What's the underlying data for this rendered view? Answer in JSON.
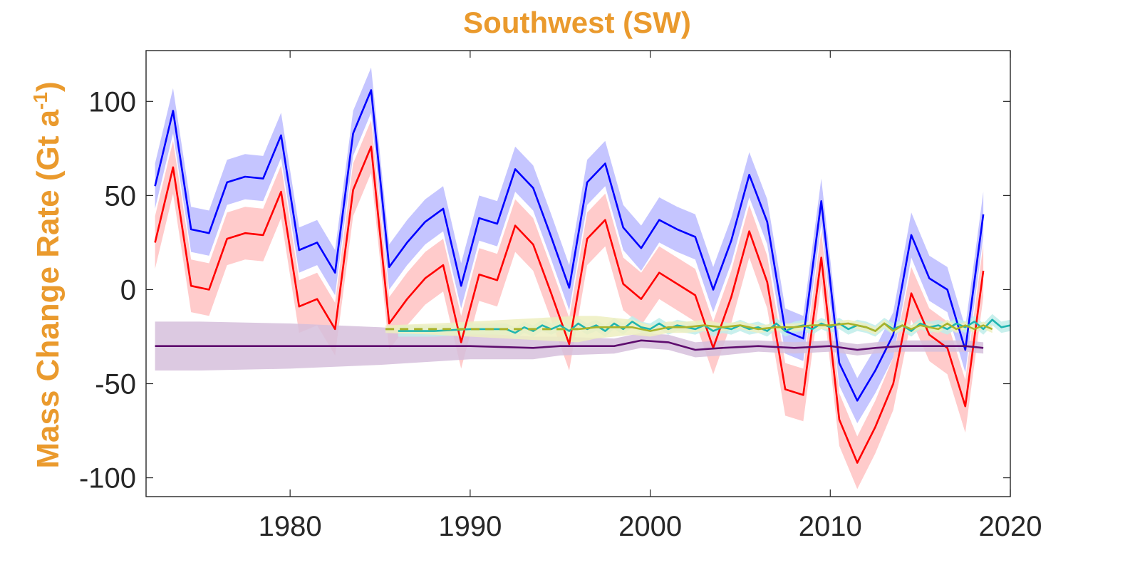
{
  "chart_data": {
    "type": "line",
    "title": "Southwest (SW)",
    "ylabel": "Mass Change Rate (Gt a",
    "ylabel_superscript": "-1",
    "ylabel_suffix": ")",
    "xlim": [
      1972,
      2020
    ],
    "ylim": [
      -110,
      127
    ],
    "xticks": [
      "1980",
      "1990",
      "2000",
      "2010",
      "2020"
    ],
    "yticks": [
      "100",
      "50",
      "0",
      "-50",
      "-100"
    ],
    "grid": false,
    "legend": "none",
    "series": [
      {
        "color": "#0000FF",
        "band_color": "#BBBBFF",
        "x": [
          1972.5,
          1973.5,
          1974.5,
          1975.5,
          1976.5,
          1977.5,
          1978.5,
          1979.5,
          1980.5,
          1981.5,
          1982.5,
          1983.5,
          1984.5,
          1985.5,
          1986.5,
          1987.5,
          1988.5,
          1989.5,
          1990.5,
          1991.5,
          1992.5,
          1993.5,
          1994.5,
          1995.5,
          1996.5,
          1997.5,
          1998.5,
          1999.5,
          2000.5,
          2001.5,
          2002.5,
          2003.5,
          2004.5,
          2005.5,
          2006.5,
          2007.5,
          2008.5,
          2009.5,
          2010.5,
          2011.5,
          2012.5,
          2013.5,
          2014.5,
          2015.5,
          2016.5,
          2017.5,
          2018.5
        ],
        "y": [
          55,
          95,
          32,
          30,
          57,
          60,
          59,
          82,
          21,
          25,
          9,
          83,
          106,
          12,
          25,
          36,
          43,
          2,
          38,
          35,
          64,
          54,
          28,
          1,
          57,
          67,
          33,
          22,
          37,
          32,
          28,
          0,
          26,
          61,
          36,
          -22,
          -26,
          47,
          -39,
          -59,
          -43,
          -24,
          29,
          6,
          0,
          -32,
          40
        ],
        "err": 12
      },
      {
        "color": "#FF0000",
        "band_color": "#FFC2C2",
        "x": [
          1972.5,
          1973.5,
          1974.5,
          1975.5,
          1976.5,
          1977.5,
          1978.5,
          1979.5,
          1980.5,
          1981.5,
          1982.5,
          1983.5,
          1984.5,
          1985.5,
          1986.5,
          1987.5,
          1988.5,
          1989.5,
          1990.5,
          1991.5,
          1992.5,
          1993.5,
          1994.5,
          1995.5,
          1996.5,
          1997.5,
          1998.5,
          1999.5,
          2000.5,
          2001.5,
          2002.5,
          2003.5,
          2004.5,
          2005.5,
          2006.5,
          2007.5,
          2008.5,
          2009.5,
          2010.5,
          2011.5,
          2012.5,
          2013.5,
          2014.5,
          2015.5,
          2016.5,
          2017.5,
          2018.5
        ],
        "y": [
          25,
          65,
          2,
          0,
          27,
          30,
          29,
          52,
          -9,
          -5,
          -21,
          53,
          76,
          -18,
          -5,
          6,
          13,
          -28,
          8,
          5,
          34,
          24,
          -2,
          -29,
          27,
          37,
          3,
          -5,
          9,
          3,
          -3,
          -31,
          -4,
          31,
          4,
          -53,
          -56,
          17,
          -69,
          -92,
          -73,
          -50,
          -2,
          -24,
          -31,
          -62,
          10
        ],
        "err": 14
      },
      {
        "color": "#5E0D6E",
        "band_color": "#D6BFDC",
        "x": [
          1972.5,
          1975,
          1980,
          1985,
          1990,
          1993.5,
          1995,
          1998,
          1999.5,
          2001,
          2002.5,
          2004,
          2006,
          2008,
          2010,
          2011.5,
          2012.5,
          2014,
          2016,
          2017.5,
          2018.5
        ],
        "y": [
          -30,
          -30,
          -30,
          -30,
          -30,
          -31,
          -30,
          -30,
          -27,
          -28,
          -32,
          -31,
          -30,
          -31,
          -30,
          -32,
          -31,
          -30,
          -30,
          -30,
          -31
        ],
        "err": [
          13,
          13,
          12,
          10,
          7,
          6,
          5,
          4,
          4,
          4,
          4,
          4,
          3,
          3,
          3,
          3,
          3,
          3,
          3,
          3,
          3
        ]
      },
      {
        "color": "#1FB5B0",
        "band_color": "#BFEDEA",
        "x": [
          1986,
          1988,
          1990,
          1992,
          1992.5,
          1993,
          1993.5,
          1994,
          1994.5,
          1995,
          1995.5,
          1996,
          1996.5,
          1997,
          1997.5,
          1998,
          1998.5,
          1999,
          1999.5,
          2000,
          2000.5,
          2001,
          2001.5,
          2002,
          2002.5,
          2003,
          2003.5,
          2004,
          2004.5,
          2005,
          2005.5,
          2006,
          2006.5,
          2007,
          2007.5,
          2008,
          2008.5,
          2009,
          2009.5,
          2010,
          2010.5,
          2011,
          2011.5,
          2012,
          2012.5,
          2013,
          2013.5,
          2014,
          2014.5,
          2015,
          2015.5,
          2016,
          2016.5,
          2017,
          2017.5,
          2018,
          2018.5,
          2019,
          2019.5,
          2020
        ],
        "y": [
          -22,
          -22,
          -21,
          -21,
          -23,
          -20,
          -22,
          -19,
          -21,
          -19,
          -22,
          -18,
          -21,
          -19,
          -22,
          -18,
          -21,
          -17,
          -20,
          -21,
          -18,
          -21,
          -19,
          -20,
          -21,
          -19,
          -22,
          -20,
          -21,
          -19,
          -21,
          -20,
          -22,
          -18,
          -22,
          -20,
          -19,
          -21,
          -18,
          -20,
          -18,
          -21,
          -19,
          -20,
          -22,
          -18,
          -21,
          -19,
          -22,
          -18,
          -20,
          -19,
          -21,
          -18,
          -20,
          -17,
          -21,
          -16,
          -20,
          -19
        ],
        "err": 3
      },
      {
        "color": "#A9B22A",
        "band_color": "#EDEFBF",
        "dash_until": 1996,
        "x": [
          1985.3,
          1988,
          1990,
          1992,
          1994,
          1996,
          1997,
          1998,
          1999,
          2000,
          2001,
          2002,
          2003,
          2004,
          2005,
          2006,
          2007,
          2008,
          2009,
          2010,
          2011,
          2012,
          2012.5,
          2013,
          2013.5,
          2014,
          2014.5,
          2015,
          2016,
          2016.5,
          2017,
          2017.5,
          2018,
          2018.5,
          2019
        ],
        "y": [
          -21,
          -21,
          -21,
          -21,
          -21,
          -21,
          -20,
          -20,
          -20,
          -22,
          -20,
          -20,
          -19,
          -20,
          -19,
          -21,
          -20,
          -20,
          -19,
          -19,
          -18,
          -20,
          -22,
          -18,
          -22,
          -19,
          -21,
          -19,
          -21,
          -18,
          -21,
          -19,
          -21,
          -19,
          -21
        ],
        "err": [
          2,
          3,
          4,
          5,
          6,
          7,
          6,
          5,
          4,
          3,
          3,
          3,
          3,
          2,
          2,
          2,
          2,
          2,
          2,
          2,
          2,
          2,
          2,
          2,
          2,
          2,
          2,
          2,
          2,
          2,
          2,
          2,
          2,
          2,
          2
        ]
      }
    ]
  }
}
